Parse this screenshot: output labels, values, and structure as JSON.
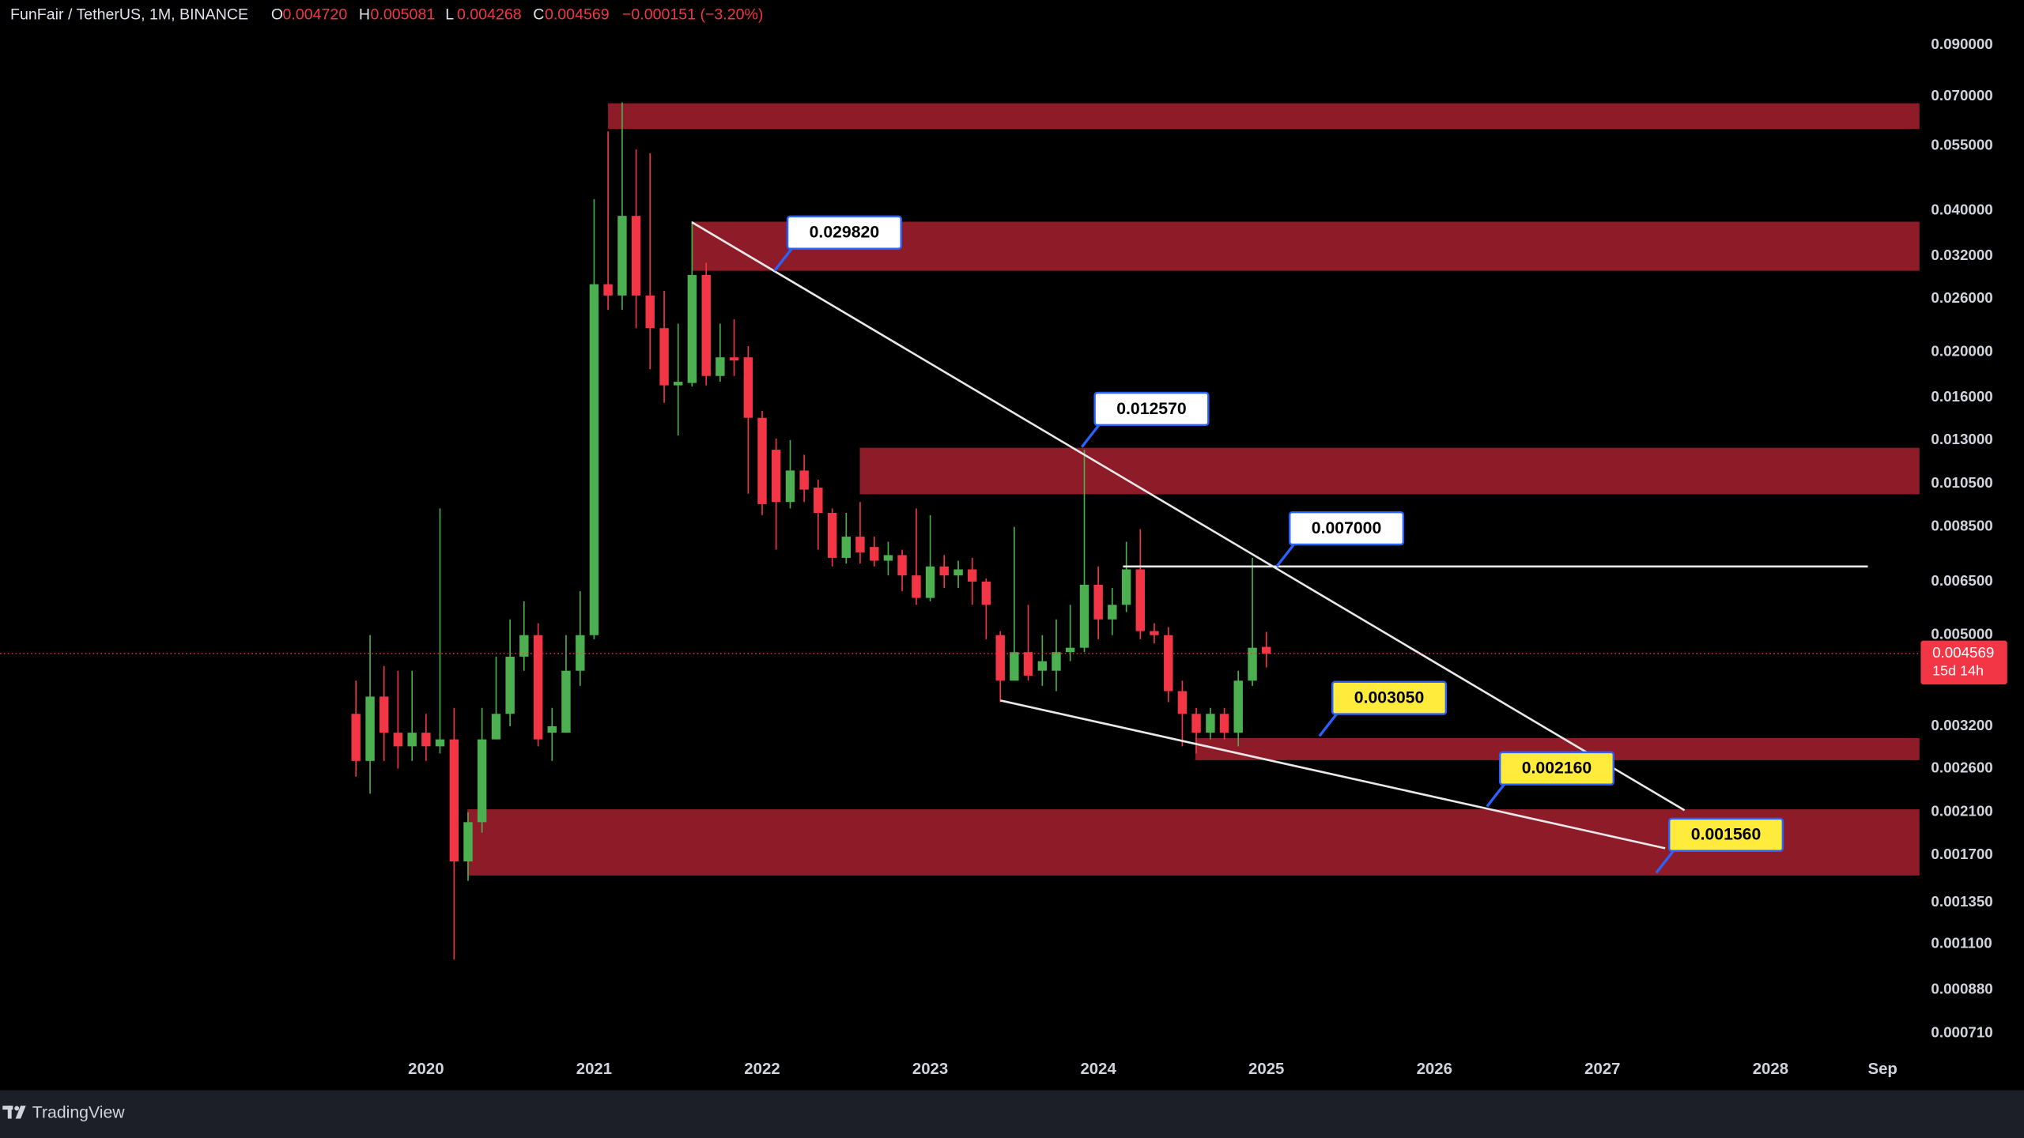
{
  "header": {
    "symbol": "FunFair / TetherUS, 1M, BINANCE",
    "o_label": "O",
    "open": "0.004720",
    "h_label": "H",
    "high": "0.005081",
    "l_label": "L",
    "low": "0.004268",
    "c_label": "C",
    "close": "0.004569",
    "change": "−0.000151 (−3.20%)"
  },
  "chart_data": {
    "type": "candlestick",
    "log_y": true,
    "x": [
      2019.583,
      2019.667,
      2019.75,
      2019.833,
      2019.917,
      2020,
      2020.083,
      2020.167,
      2020.25,
      2020.333,
      2020.417,
      2020.5,
      2020.583,
      2020.667,
      2020.75,
      2020.833,
      2020.917,
      2021,
      2021.083,
      2021.167,
      2021.25,
      2021.333,
      2021.417,
      2021.5,
      2021.583,
      2021.667,
      2021.75,
      2021.833,
      2021.917,
      2022,
      2022.083,
      2022.167,
      2022.25,
      2022.333,
      2022.417,
      2022.5,
      2022.583,
      2022.667,
      2022.75,
      2022.833,
      2022.917,
      2023,
      2023.083,
      2023.167,
      2023.25,
      2023.333,
      2023.417,
      2023.5,
      2023.583,
      2023.667,
      2023.75,
      2023.833,
      2023.917,
      2024,
      2024.083,
      2024.167,
      2024.25,
      2024.333,
      2024.417,
      2024.5,
      2024.583,
      2024.667,
      2024.75,
      2024.833,
      2024.917,
      2025
    ],
    "open": [
      0.0034,
      0.0027,
      0.0037,
      0.0031,
      0.0029,
      0.0031,
      0.0029,
      0.003,
      0.00165,
      0.002,
      0.003,
      0.0034,
      0.0045,
      0.005,
      0.0031,
      0.0031,
      0.0042,
      0.005,
      0.0279,
      0.0264,
      0.039,
      0.0264,
      0.0225,
      0.017,
      0.0172,
      0.0292,
      0.0178,
      0.0195,
      0.0195,
      0.0145,
      0.0124,
      0.0096,
      0.0112,
      0.0103,
      0.0091,
      0.0073,
      0.0081,
      0.0077,
      0.0072,
      0.0074,
      0.0067,
      0.006,
      0.007,
      0.0067,
      0.0069,
      0.0065,
      0.005,
      0.004,
      0.0046,
      0.0042,
      0.0042,
      0.0046,
      0.0047,
      0.0064,
      0.0054,
      0.0058,
      0.0069,
      0.0051,
      0.005,
      0.0038,
      0.0034,
      0.0031,
      0.0034,
      0.0031,
      0.004,
      0.00472
    ],
    "high": [
      0.004,
      0.005,
      0.0043,
      0.0042,
      0.0042,
      0.0034,
      0.0093,
      0.0035,
      0.0021,
      0.0035,
      0.0045,
      0.0054,
      0.0059,
      0.0053,
      0.0035,
      0.005,
      0.0062,
      0.0423,
      0.059,
      0.068,
      0.054,
      0.053,
      0.027,
      0.023,
      0.038,
      0.031,
      0.023,
      0.0235,
      0.0206,
      0.015,
      0.0131,
      0.013,
      0.0121,
      0.0107,
      0.0093,
      0.0091,
      0.0096,
      0.0081,
      0.0079,
      0.0076,
      0.0093,
      0.009,
      0.0074,
      0.0072,
      0.0073,
      0.0066,
      0.0051,
      0.0085,
      0.0058,
      0.005,
      0.0054,
      0.0058,
      0.0124,
      0.007,
      0.0063,
      0.0079,
      0.0084,
      0.0053,
      0.0052,
      0.004,
      0.0035,
      0.0035,
      0.0035,
      0.0042,
      0.0073,
      0.005081
    ],
    "low": [
      0.0025,
      0.0023,
      0.0027,
      0.0026,
      0.0027,
      0.0027,
      0.0028,
      0.00102,
      0.0015,
      0.0019,
      0.003,
      0.0032,
      0.0042,
      0.0029,
      0.0027,
      0.0031,
      0.0039,
      0.0049,
      0.0246,
      0.0246,
      0.0225,
      0.0184,
      0.0156,
      0.0133,
      0.0169,
      0.017,
      0.0173,
      0.0178,
      0.01,
      0.009,
      0.0076,
      0.0093,
      0.0096,
      0.0076,
      0.007,
      0.0071,
      0.0071,
      0.007,
      0.0067,
      0.0062,
      0.0058,
      0.0059,
      0.0063,
      0.0063,
      0.0058,
      0.0049,
      0.0036,
      0.004,
      0.004,
      0.0039,
      0.0038,
      0.0044,
      0.0046,
      0.0049,
      0.005,
      0.0056,
      0.0049,
      0.0048,
      0.0036,
      0.0029,
      0.0028,
      0.003,
      0.003,
      0.0029,
      0.0039,
      0.004268
    ],
    "close": [
      0.0027,
      0.0037,
      0.0031,
      0.0029,
      0.0031,
      0.0029,
      0.003,
      0.00165,
      0.002,
      0.003,
      0.0034,
      0.0045,
      0.005,
      0.003,
      0.0032,
      0.0042,
      0.005,
      0.0279,
      0.0264,
      0.039,
      0.0264,
      0.0225,
      0.017,
      0.0173,
      0.0292,
      0.0178,
      0.0195,
      0.0192,
      0.0145,
      0.0095,
      0.0096,
      0.0112,
      0.0102,
      0.0091,
      0.0073,
      0.0081,
      0.0075,
      0.0072,
      0.0074,
      0.0067,
      0.006,
      0.007,
      0.0067,
      0.0069,
      0.0065,
      0.0058,
      0.004,
      0.0046,
      0.0041,
      0.0044,
      0.0046,
      0.0047,
      0.0064,
      0.0054,
      0.0058,
      0.0069,
      0.0051,
      0.005,
      0.0038,
      0.0034,
      0.0031,
      0.0034,
      0.0031,
      0.004,
      0.0047,
      0.004569
    ],
    "up_color": "#4caf50",
    "down_color": "#f23645",
    "xlim": [
      2017.465,
      2028.886
    ],
    "xticks": [
      2020,
      2021,
      2022,
      2023,
      2024,
      2025,
      2026,
      2027,
      2028,
      {
        "value": 2028.667,
        "label": "Sep"
      }
    ],
    "ylim": [
      0.00065,
      0.1123
    ],
    "yticks": [
      {
        "value": 0.09,
        "label": "0.090000"
      },
      {
        "value": 0.07,
        "label": "0.070000"
      },
      {
        "value": 0.055,
        "label": "0.055000"
      },
      {
        "value": 0.04,
        "label": "0.040000"
      },
      {
        "value": 0.032,
        "label": "0.032000"
      },
      {
        "value": 0.026,
        "label": "0.026000"
      },
      {
        "value": 0.02,
        "label": "0.020000"
      },
      {
        "value": 0.016,
        "label": "0.016000"
      },
      {
        "value": 0.013,
        "label": "0.013000"
      },
      {
        "value": 0.0105,
        "label": "0.010500"
      },
      {
        "value": 0.0085,
        "label": "0.008500"
      },
      {
        "value": 0.0065,
        "label": "0.006500"
      },
      {
        "value": 0.005,
        "label": "0.005000"
      },
      {
        "value": 0.0032,
        "label": "0.003200"
      },
      {
        "value": 0.0026,
        "label": "0.002600"
      },
      {
        "value": 0.0021,
        "label": "0.002100"
      },
      {
        "value": 0.0017,
        "label": "0.001700"
      },
      {
        "value": 0.00135,
        "label": "0.001350"
      },
      {
        "value": 0.0011,
        "label": "0.001100"
      },
      {
        "value": 0.00088,
        "label": "0.000880"
      },
      {
        "value": 0.00071,
        "label": "0.000710"
      }
    ],
    "zone_color": "#8e1c28",
    "zones": [
      {
        "x0": 2021.083,
        "low": 0.0597,
        "high": 0.0677
      },
      {
        "x0": 2021.582,
        "low": 0.0298,
        "high": 0.0379
      },
      {
        "x0": 2022.581,
        "low": 0.00997,
        "high": 0.01252
      },
      {
        "x0": 2024.578,
        "low": 0.00271,
        "high": 0.00302
      },
      {
        "x0": 2020.246,
        "low": 0.00154,
        "high": 0.00213
      }
    ],
    "line_color": "#e8e8e8",
    "trend_lines": [
      {
        "x0": 2021.582,
        "y0": 0.0378,
        "x1": 2027.488,
        "y1": 0.00212
      },
      {
        "x0": 2023.418,
        "y0": 0.00363,
        "x1": 2027.373,
        "y1": 0.00176
      },
      {
        "x0": 2024.147,
        "y0": 0.007,
        "x1": 2028.579,
        "y1": 0.007
      }
    ],
    "callouts": [
      {
        "label": "0.029820",
        "x": 2022.074,
        "y": 0.02982,
        "color": "#ffffff"
      },
      {
        "label": "0.012570",
        "x": 2023.902,
        "y": 0.01257,
        "color": "#ffffff"
      },
      {
        "label": "0.007000",
        "x": 2025.062,
        "y": 0.007,
        "color": "#ffffff"
      },
      {
        "label": "0.003050",
        "x": 2025.316,
        "y": 0.00305,
        "color": "#ffeb3b"
      },
      {
        "label": "0.002160",
        "x": 2026.313,
        "y": 0.00216,
        "color": "#ffeb3b"
      },
      {
        "label": "0.001560",
        "x": 2027.32,
        "y": 0.00156,
        "color": "#ffeb3b"
      }
    ],
    "countdown": "15d 14h"
  },
  "footer": {
    "brand": "TradingView"
  }
}
